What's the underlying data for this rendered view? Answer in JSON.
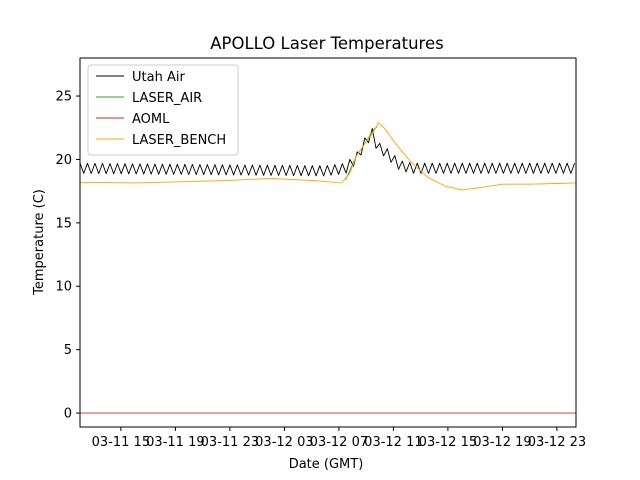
{
  "chart_data": {
    "type": "line",
    "title": "APOLLO Laser Temperatures",
    "xlabel": "Date (GMT)",
    "ylabel": "Temperature (C)",
    "x_unit": "hours since 03-11 12:00 GMT",
    "xlim": [
      0,
      36.4
    ],
    "ylim": [
      -1.1,
      28
    ],
    "xticks": [
      {
        "x": 3,
        "label": "03-11 15"
      },
      {
        "x": 7,
        "label": "03-11 19"
      },
      {
        "x": 11,
        "label": "03-11 23"
      },
      {
        "x": 15,
        "label": "03-12 03"
      },
      {
        "x": 19,
        "label": "03-12 07"
      },
      {
        "x": 23,
        "label": "03-12 11"
      },
      {
        "x": 27,
        "label": "03-12 15"
      },
      {
        "x": 31,
        "label": "03-12 19"
      },
      {
        "x": 35,
        "label": "03-12 23"
      }
    ],
    "yticks": [
      {
        "y": 0,
        "label": "0"
      },
      {
        "y": 5,
        "label": "5"
      },
      {
        "y": 10,
        "label": "10"
      },
      {
        "y": 15,
        "label": "15"
      },
      {
        "y": 20,
        "label": "20"
      },
      {
        "y": 25,
        "label": "25"
      }
    ],
    "legend_position": "top-left",
    "series": [
      {
        "name": "Utah Air",
        "color": "#000000",
        "style": "oscillating",
        "base_points": [
          [
            0,
            19.3
          ],
          [
            18,
            19.1
          ],
          [
            19.5,
            19.3
          ],
          [
            20.3,
            20.1
          ],
          [
            21,
            21.5
          ],
          [
            21.5,
            22.1
          ],
          [
            21.8,
            21
          ],
          [
            22.4,
            20.6
          ],
          [
            23.5,
            19.5
          ],
          [
            24.5,
            19.3
          ],
          [
            36.4,
            19.3
          ]
        ],
        "oscillation_amplitude": 0.4,
        "oscillation_period_hours": 0.55
      },
      {
        "name": "LASER_AIR",
        "color": "#2ca02c",
        "style": "line",
        "points": [
          [
            19.5,
            18.4
          ],
          [
            20.3,
            20.3
          ],
          [
            21,
            21.4
          ],
          [
            21.5,
            22.3
          ],
          [
            21.8,
            22.6
          ]
        ]
      },
      {
        "name": "AOML",
        "color": "#d62728",
        "style": "line",
        "points": [
          [
            0,
            0
          ],
          [
            36.4,
            0
          ]
        ]
      },
      {
        "name": "LASER_BENCH",
        "color": "#ffa500",
        "style": "line",
        "points": [
          [
            0,
            18.2
          ],
          [
            4,
            18.15
          ],
          [
            8,
            18.25
          ],
          [
            11,
            18.35
          ],
          [
            14,
            18.5
          ],
          [
            17,
            18.35
          ],
          [
            19.2,
            18.15
          ],
          [
            19.8,
            18.9
          ],
          [
            20.3,
            20.3
          ],
          [
            21,
            21.4
          ],
          [
            21.5,
            22.1
          ],
          [
            21.9,
            22.9
          ],
          [
            22.4,
            22.4
          ],
          [
            23.2,
            21.2
          ],
          [
            24.2,
            19.9
          ],
          [
            25.5,
            18.6
          ],
          [
            26.8,
            17.9
          ],
          [
            28,
            17.6
          ],
          [
            29.5,
            17.8
          ],
          [
            31,
            18.05
          ],
          [
            33,
            18.05
          ],
          [
            35,
            18.1
          ],
          [
            36.4,
            18.15
          ]
        ]
      }
    ]
  }
}
